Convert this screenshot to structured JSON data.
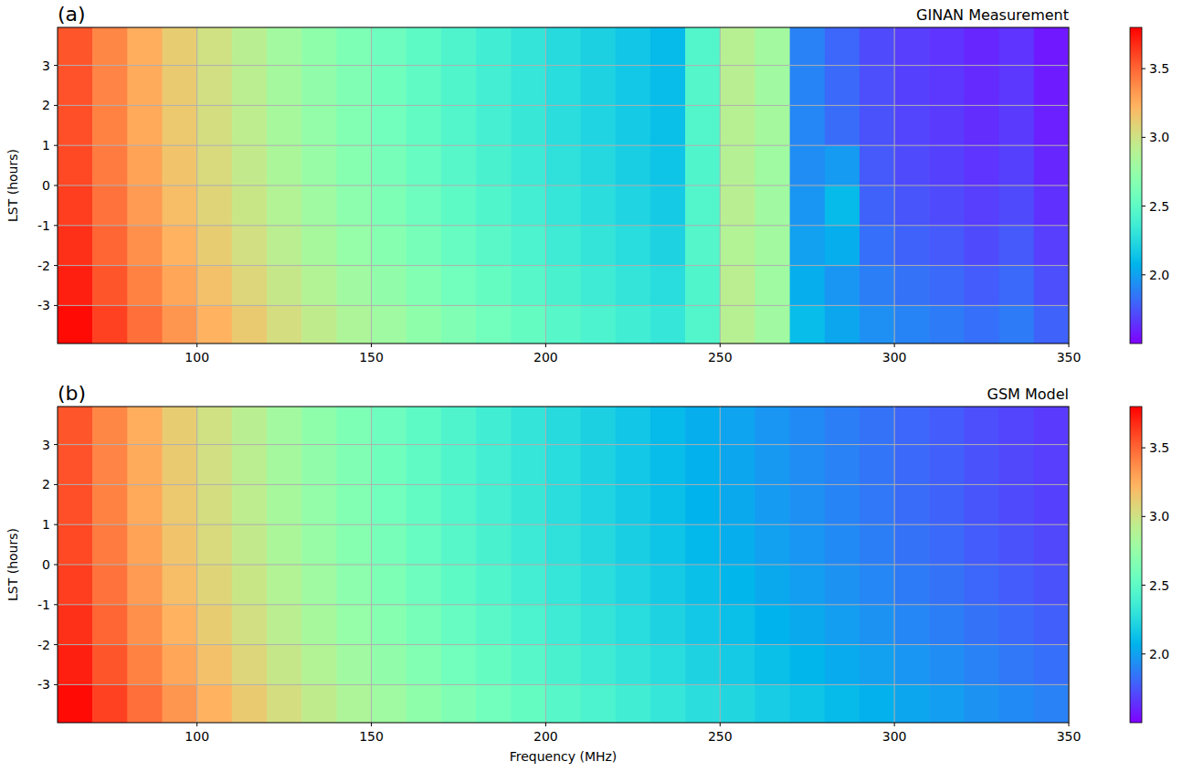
{
  "chart_data": [
    {
      "type": "heatmap",
      "title": "GINAN Measurement",
      "label": "(a)",
      "ylabel": "LST (hours)",
      "x": [
        65,
        75,
        85,
        95,
        105,
        115,
        125,
        135,
        145,
        155,
        165,
        175,
        185,
        195,
        205,
        215,
        225,
        235,
        245,
        255,
        265,
        275,
        285,
        295,
        305,
        315,
        325,
        335,
        345
      ],
      "y": [
        -3.5,
        -2.5,
        -1.5,
        -0.5,
        0.5,
        1.5,
        2.5,
        3.5
      ],
      "xlim": [
        60,
        350
      ],
      "ylim": [
        -3.95,
        3.95
      ],
      "xticks": [
        100,
        150,
        200,
        250,
        300,
        350
      ],
      "yticks": [
        -3,
        -2,
        -1,
        0,
        1,
        2,
        3
      ],
      "grid": true,
      "colorbar": {
        "range": [
          1.5,
          3.8
        ],
        "ticks": [
          {
            "value": 2,
            "label": "2.0"
          },
          2.5,
          {
            "value": 3,
            "label": "3.0"
          },
          3.5
        ]
      },
      "values": [
        [
          3.77,
          3.61,
          3.47,
          3.34,
          3.23,
          3.13,
          3.03,
          2.94,
          2.86,
          2.79,
          2.72,
          2.65,
          2.59,
          2.53,
          2.47,
          2.42,
          2.37,
          2.32,
          2.45,
          2.9,
          2.8,
          2.11,
          2.02,
          1.94,
          1.9,
          1.87,
          1.83,
          1.87,
          1.79
        ],
        [
          3.71,
          3.55,
          3.41,
          3.28,
          3.17,
          3.07,
          2.97,
          2.88,
          2.8,
          2.73,
          2.66,
          2.59,
          2.53,
          2.47,
          2.41,
          2.36,
          2.31,
          2.26,
          2.44,
          2.92,
          2.79,
          2.05,
          1.96,
          1.88,
          1.84,
          1.81,
          1.77,
          1.81,
          1.73
        ],
        [
          3.66,
          3.5,
          3.36,
          3.23,
          3.12,
          3.02,
          2.92,
          2.83,
          2.75,
          2.68,
          2.61,
          2.54,
          2.48,
          2.42,
          2.36,
          2.31,
          2.26,
          2.21,
          2.46,
          2.88,
          2.81,
          2.0,
          2.05,
          1.83,
          1.79,
          1.76,
          1.72,
          1.76,
          1.68
        ],
        [
          3.62,
          3.46,
          3.32,
          3.19,
          3.08,
          2.98,
          2.88,
          2.79,
          2.71,
          2.64,
          2.57,
          2.5,
          2.44,
          2.38,
          2.32,
          2.27,
          2.22,
          2.17,
          2.45,
          2.91,
          2.8,
          1.96,
          2.1,
          1.79,
          1.75,
          1.72,
          1.68,
          1.72,
          1.64
        ],
        [
          3.59,
          3.43,
          3.29,
          3.16,
          3.05,
          2.95,
          2.85,
          2.76,
          2.68,
          2.61,
          2.54,
          2.47,
          2.41,
          2.35,
          2.29,
          2.24,
          2.19,
          2.14,
          2.44,
          2.89,
          2.79,
          1.93,
          1.98,
          1.76,
          1.72,
          1.69,
          1.65,
          1.69,
          1.61
        ],
        [
          3.57,
          3.41,
          3.27,
          3.14,
          3.03,
          2.93,
          2.83,
          2.74,
          2.66,
          2.59,
          2.52,
          2.45,
          2.39,
          2.33,
          2.27,
          2.22,
          2.17,
          2.12,
          2.45,
          2.9,
          2.82,
          1.91,
          1.82,
          1.74,
          1.7,
          1.67,
          1.63,
          1.67,
          1.59
        ],
        [
          3.56,
          3.4,
          3.26,
          3.13,
          3.02,
          2.92,
          2.82,
          2.73,
          2.65,
          2.58,
          2.51,
          2.44,
          2.38,
          2.32,
          2.26,
          2.21,
          2.16,
          2.11,
          2.46,
          2.91,
          2.8,
          1.9,
          1.81,
          1.73,
          1.69,
          1.66,
          1.62,
          1.66,
          1.58
        ],
        [
          3.55,
          3.39,
          3.25,
          3.12,
          3.01,
          2.91,
          2.81,
          2.72,
          2.64,
          2.57,
          2.5,
          2.43,
          2.37,
          2.31,
          2.25,
          2.2,
          2.15,
          2.1,
          2.45,
          2.9,
          2.81,
          1.89,
          1.8,
          1.72,
          1.68,
          1.65,
          1.61,
          1.65,
          1.57
        ]
      ]
    },
    {
      "type": "heatmap",
      "title": "GSM Model",
      "label": "(b)",
      "xlabel": "Frequency (MHz)",
      "ylabel": "LST (hours)",
      "x": [
        65,
        75,
        85,
        95,
        105,
        115,
        125,
        135,
        145,
        155,
        165,
        175,
        185,
        195,
        205,
        215,
        225,
        235,
        245,
        255,
        265,
        275,
        285,
        295,
        305,
        315,
        325,
        335,
        345
      ],
      "y": [
        -3.5,
        -2.5,
        -1.5,
        -0.5,
        0.5,
        1.5,
        2.5,
        3.5
      ],
      "xlim": [
        60,
        350
      ],
      "ylim": [
        -3.95,
        3.95
      ],
      "xticks": [
        100,
        150,
        200,
        250,
        300,
        350
      ],
      "yticks": [
        -3,
        -2,
        -1,
        0,
        1,
        2,
        3
      ],
      "grid": true,
      "colorbar": {
        "range": [
          1.5,
          3.8
        ],
        "ticks": [
          {
            "value": 2,
            "label": "2.0"
          },
          2.5,
          {
            "value": 3,
            "label": "3.0"
          },
          3.5
        ]
      },
      "values": [
        [
          3.77,
          3.61,
          3.47,
          3.34,
          3.23,
          3.13,
          3.03,
          2.94,
          2.86,
          2.79,
          2.72,
          2.65,
          2.59,
          2.53,
          2.47,
          2.42,
          2.37,
          2.32,
          2.27,
          2.23,
          2.18,
          2.14,
          2.1,
          2.06,
          2.02,
          1.99,
          1.95,
          1.92,
          1.89
        ],
        [
          3.71,
          3.55,
          3.41,
          3.28,
          3.17,
          3.07,
          2.97,
          2.88,
          2.8,
          2.73,
          2.66,
          2.59,
          2.53,
          2.47,
          2.41,
          2.36,
          2.31,
          2.26,
          2.21,
          2.17,
          2.12,
          2.08,
          2.04,
          2.0,
          1.96,
          1.93,
          1.89,
          1.86,
          1.83
        ],
        [
          3.66,
          3.5,
          3.36,
          3.23,
          3.12,
          3.02,
          2.92,
          2.83,
          2.75,
          2.68,
          2.61,
          2.54,
          2.48,
          2.42,
          2.36,
          2.31,
          2.26,
          2.21,
          2.16,
          2.12,
          2.07,
          2.03,
          1.99,
          1.95,
          1.91,
          1.88,
          1.84,
          1.81,
          1.78
        ],
        [
          3.62,
          3.46,
          3.32,
          3.19,
          3.08,
          2.98,
          2.88,
          2.79,
          2.71,
          2.64,
          2.57,
          2.5,
          2.44,
          2.38,
          2.32,
          2.27,
          2.22,
          2.17,
          2.12,
          2.08,
          2.03,
          1.99,
          1.95,
          1.91,
          1.87,
          1.84,
          1.8,
          1.77,
          1.74
        ],
        [
          3.59,
          3.43,
          3.29,
          3.16,
          3.05,
          2.95,
          2.85,
          2.76,
          2.68,
          2.61,
          2.54,
          2.47,
          2.41,
          2.35,
          2.29,
          2.24,
          2.19,
          2.14,
          2.09,
          2.05,
          2.0,
          1.96,
          1.92,
          1.88,
          1.84,
          1.81,
          1.77,
          1.74,
          1.71
        ],
        [
          3.57,
          3.41,
          3.27,
          3.14,
          3.03,
          2.93,
          2.83,
          2.74,
          2.66,
          2.59,
          2.52,
          2.45,
          2.39,
          2.33,
          2.27,
          2.22,
          2.17,
          2.12,
          2.07,
          2.03,
          1.98,
          1.94,
          1.9,
          1.86,
          1.82,
          1.79,
          1.75,
          1.72,
          1.69
        ],
        [
          3.56,
          3.4,
          3.26,
          3.13,
          3.02,
          2.92,
          2.82,
          2.73,
          2.65,
          2.58,
          2.51,
          2.44,
          2.38,
          2.32,
          2.26,
          2.21,
          2.16,
          2.11,
          2.06,
          2.02,
          1.97,
          1.93,
          1.89,
          1.85,
          1.81,
          1.78,
          1.74,
          1.71,
          1.68
        ],
        [
          3.55,
          3.39,
          3.25,
          3.12,
          3.01,
          2.91,
          2.81,
          2.72,
          2.64,
          2.57,
          2.5,
          2.43,
          2.37,
          2.31,
          2.25,
          2.2,
          2.15,
          2.1,
          2.05,
          2.01,
          1.96,
          1.92,
          1.88,
          1.84,
          1.8,
          1.77,
          1.73,
          1.7,
          1.67
        ]
      ]
    }
  ]
}
